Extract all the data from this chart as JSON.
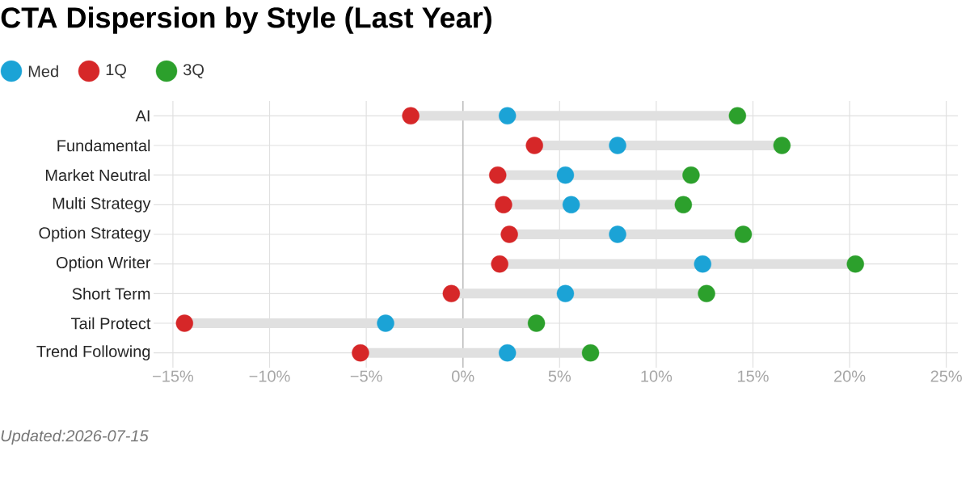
{
  "chart_data": {
    "type": "scatter",
    "title": "CTA Dispersion by Style (Last Year)",
    "orientation": "horizontal",
    "categories": [
      "AI",
      "Fundamental",
      "Market Neutral",
      "Multi Strategy",
      "Option Strategy",
      "Option Writer",
      "Short Term",
      "Tail Protect",
      "Trend Following"
    ],
    "series": [
      {
        "name": "Med",
        "color": "#1ba3d6",
        "values": [
          2.3,
          8.0,
          5.3,
          5.6,
          8.0,
          12.4,
          5.3,
          -4.0,
          2.3
        ]
      },
      {
        "name": "1Q",
        "color": "#d62728",
        "values": [
          -2.7,
          3.7,
          1.8,
          2.1,
          2.4,
          1.9,
          -0.6,
          -14.4,
          -5.3
        ]
      },
      {
        "name": "3Q",
        "color": "#2ca02c",
        "values": [
          14.2,
          16.5,
          11.8,
          11.4,
          14.5,
          20.3,
          12.6,
          3.8,
          6.6
        ]
      }
    ],
    "xlim": [
      -16,
      25.6
    ],
    "xticks": [
      {
        "value": -15,
        "label": "−15%"
      },
      {
        "value": -10,
        "label": "−10%"
      },
      {
        "value": -5,
        "label": "−5%"
      },
      {
        "value": 0,
        "label": "0%"
      },
      {
        "value": 5,
        "label": "5%"
      },
      {
        "value": 10,
        "label": "10%"
      },
      {
        "value": 15,
        "label": "15%"
      },
      {
        "value": 20,
        "label": "20%"
      },
      {
        "value": 25,
        "label": "25%"
      }
    ],
    "ref_lines": [
      {
        "axis": "x",
        "value": 0,
        "color": "#bbbbbb"
      }
    ],
    "grid": true,
    "legend": "top left",
    "marker": "circle",
    "annotations": [
      "*Updated:2026-07-15*"
    ]
  }
}
